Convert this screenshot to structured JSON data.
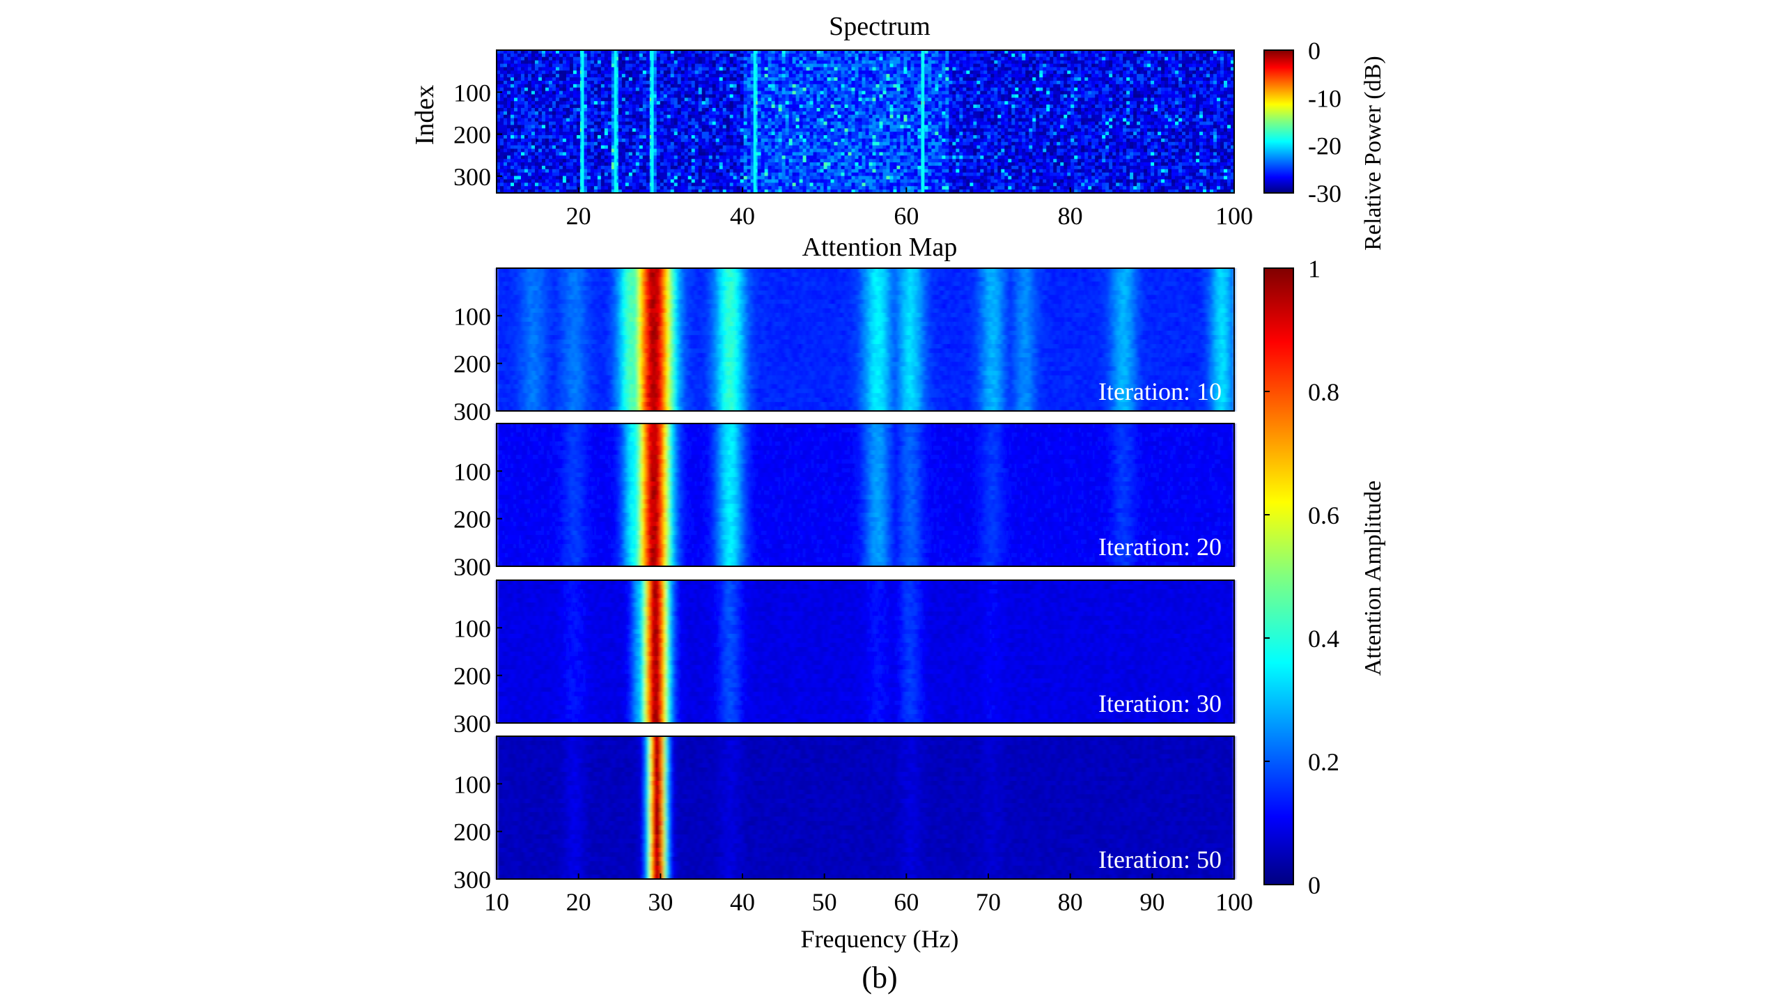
{
  "figure_label": "(b)",
  "chart_data": [
    {
      "type": "heatmap",
      "title": "Spectrum",
      "ylabel": "Index",
      "xlabel": "",
      "xlim": [
        10,
        100
      ],
      "ylim": [
        0,
        340
      ],
      "x_ticks": [
        20,
        40,
        60,
        80,
        100
      ],
      "y_ticks": [
        100,
        200,
        300
      ],
      "colorbar": {
        "label": "Relative Power (dB)",
        "range": [
          -30,
          0
        ],
        "ticks": [
          0,
          -10,
          -20,
          -30
        ],
        "colormap": "jet"
      },
      "dominant_frequencies_hz": [
        20.5,
        24.5,
        29,
        41.5,
        62
      ]
    },
    {
      "type": "heatmap",
      "title": "Attention Map",
      "xlabel": "Frequency (Hz)",
      "xlim": [
        10,
        100
      ],
      "ylim": [
        0,
        300
      ],
      "x_ticks": [
        10,
        20,
        30,
        40,
        50,
        60,
        70,
        80,
        90,
        100
      ],
      "y_ticks": [
        100,
        200,
        300
      ],
      "colorbar": {
        "label": "Attention Amplitude",
        "range": [
          0,
          1
        ],
        "ticks": [
          1,
          0.8,
          0.6,
          0.4,
          0.2,
          0
        ],
        "colormap": "jet"
      },
      "panels": [
        {
          "annotation": "Iteration: 10",
          "background_level": 0.16,
          "peaks": [
            {
              "freq": 29.2,
              "amplitude": 0.95,
              "width_hz": 1.6
            },
            {
              "freq": 26.5,
              "amplitude": 0.45,
              "width_hz": 1.2
            },
            {
              "freq": 38.5,
              "amplitude": 0.42,
              "width_hz": 1.3
            },
            {
              "freq": 56.5,
              "amplitude": 0.36,
              "width_hz": 1.3
            },
            {
              "freq": 60.5,
              "amplitude": 0.34,
              "width_hz": 1.2
            },
            {
              "freq": 70.5,
              "amplitude": 0.3,
              "width_hz": 1.1
            },
            {
              "freq": 74.5,
              "amplitude": 0.26,
              "width_hz": 1.0
            },
            {
              "freq": 86.5,
              "amplitude": 0.3,
              "width_hz": 1.1
            },
            {
              "freq": 98.5,
              "amplitude": 0.34,
              "width_hz": 1.0
            },
            {
              "freq": 14.5,
              "amplitude": 0.24,
              "width_hz": 1.2
            },
            {
              "freq": 19.5,
              "amplitude": 0.24,
              "width_hz": 1.2
            }
          ]
        },
        {
          "annotation": "Iteration: 20",
          "background_level": 0.12,
          "peaks": [
            {
              "freq": 29.2,
              "amplitude": 0.95,
              "width_hz": 1.4
            },
            {
              "freq": 26.8,
              "amplitude": 0.38,
              "width_hz": 1.0
            },
            {
              "freq": 38.5,
              "amplitude": 0.36,
              "width_hz": 1.2
            },
            {
              "freq": 56.5,
              "amplitude": 0.28,
              "width_hz": 1.2
            },
            {
              "freq": 60.5,
              "amplitude": 0.22,
              "width_hz": 1.1
            },
            {
              "freq": 70.5,
              "amplitude": 0.18,
              "width_hz": 1.0
            },
            {
              "freq": 86.5,
              "amplitude": 0.18,
              "width_hz": 1.0
            },
            {
              "freq": 19.5,
              "amplitude": 0.18,
              "width_hz": 1.1
            }
          ]
        },
        {
          "annotation": "Iteration: 30",
          "background_level": 0.1,
          "peaks": [
            {
              "freq": 29.4,
              "amplitude": 0.96,
              "width_hz": 1.1
            },
            {
              "freq": 27.6,
              "amplitude": 0.32,
              "width_hz": 0.8
            },
            {
              "freq": 38.5,
              "amplitude": 0.2,
              "width_hz": 1.0
            },
            {
              "freq": 60.5,
              "amplitude": 0.18,
              "width_hz": 1.0
            },
            {
              "freq": 56.5,
              "amplitude": 0.14,
              "width_hz": 1.0
            },
            {
              "freq": 19.5,
              "amplitude": 0.14,
              "width_hz": 1.0
            },
            {
              "freq": 70.5,
              "amplitude": 0.12,
              "width_hz": 0.9
            }
          ]
        },
        {
          "annotation": "Iteration: 50",
          "background_level": 0.06,
          "peaks": [
            {
              "freq": 29.6,
              "amplitude": 0.97,
              "width_hz": 0.8
            },
            {
              "freq": 19.5,
              "amplitude": 0.1,
              "width_hz": 0.9
            },
            {
              "freq": 38.5,
              "amplitude": 0.09,
              "width_hz": 0.9
            },
            {
              "freq": 60.5,
              "amplitude": 0.09,
              "width_hz": 0.9
            },
            {
              "freq": 70.5,
              "amplitude": 0.08,
              "width_hz": 0.9
            }
          ]
        }
      ]
    }
  ]
}
